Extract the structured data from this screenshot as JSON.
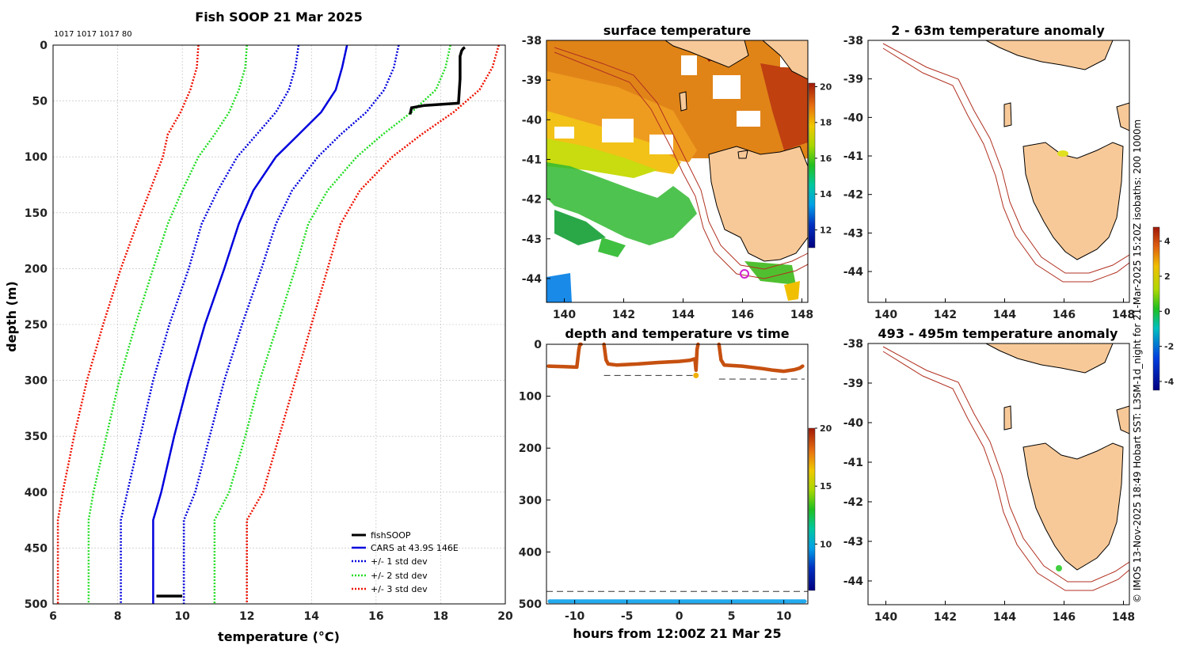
{
  "colors": {
    "land": "#f8c998",
    "cars": "#0000dd",
    "std1": "#0000dd",
    "std2": "#22dd22",
    "std3": "#ee1100",
    "fish": "#000000",
    "isobath": "#b03020",
    "track": "#c65010",
    "bottom": "#22aaee"
  },
  "chart_data": [
    {
      "type": "line",
      "name": "profile",
      "title": "Fish SOOP 21 Mar 2025",
      "subtitle": "1017 1017 1017 80",
      "xlabel": "temperature (°C)",
      "ylabel": "depth (m)",
      "xlim": [
        6,
        20
      ],
      "ylim": [
        500,
        0
      ],
      "xticks": [
        6,
        8,
        10,
        12,
        14,
        16,
        18,
        20
      ],
      "yticks": [
        0,
        50,
        100,
        150,
        200,
        250,
        300,
        350,
        400,
        450,
        500
      ],
      "legend": [
        "fishSOOP",
        "CARS at 43.9S 146E",
        "+/- 1 std dev",
        "+/- 2 std dev",
        "+/- 3 std dev"
      ],
      "depth": [
        0,
        20,
        40,
        60,
        80,
        100,
        130,
        160,
        200,
        250,
        300,
        350,
        400,
        425,
        450,
        500
      ],
      "series": [
        {
          "name": "CARS",
          "values": [
            15.1,
            14.95,
            14.75,
            14.3,
            13.6,
            12.9,
            12.2,
            11.75,
            11.3,
            10.7,
            10.2,
            9.75,
            9.35,
            9.1,
            9.1,
            9.1
          ]
        },
        {
          "name": "+1 std",
          "values": [
            16.7,
            16.55,
            16.25,
            15.7,
            14.9,
            14.2,
            13.4,
            12.9,
            12.45,
            11.85,
            11.3,
            10.85,
            10.4,
            10.05,
            10.05,
            10.05
          ]
        },
        {
          "name": "-1 std",
          "values": [
            13.6,
            13.5,
            13.3,
            12.9,
            12.3,
            11.7,
            11.1,
            10.6,
            10.2,
            9.6,
            9.1,
            8.7,
            8.3,
            8.1,
            8.1,
            8.1
          ]
        },
        {
          "name": "+2 std",
          "values": [
            18.3,
            18.15,
            17.85,
            17.1,
            16.2,
            15.4,
            14.5,
            13.9,
            13.5,
            12.95,
            12.4,
            11.95,
            11.45,
            11.0,
            11.0,
            11.0
          ]
        },
        {
          "name": "-2 std",
          "values": [
            12.0,
            11.95,
            11.75,
            11.45,
            11.0,
            10.5,
            10.0,
            9.55,
            9.1,
            8.55,
            8.05,
            7.65,
            7.25,
            7.1,
            7.1,
            7.1
          ]
        },
        {
          "name": "+3 std",
          "values": [
            19.8,
            19.6,
            19.2,
            18.4,
            17.4,
            16.5,
            15.5,
            14.9,
            14.5,
            14.0,
            13.5,
            13.0,
            12.5,
            12.0,
            12.0,
            12.0
          ]
        },
        {
          "name": "-3 std",
          "values": [
            10.5,
            10.45,
            10.25,
            9.95,
            9.55,
            9.4,
            9.0,
            8.6,
            8.1,
            7.55,
            7.05,
            6.65,
            6.3,
            6.15,
            6.15,
            6.15
          ]
        }
      ],
      "fish_segments": [
        {
          "t": [
            18.75,
            18.7,
            18.65,
            18.6,
            18.6,
            18.55,
            17.5,
            17.1,
            17.05
          ],
          "d": [
            2,
            3,
            5,
            10,
            30,
            52,
            54,
            56,
            62
          ]
        },
        {
          "t": [
            9.2,
            9.5,
            10.0
          ],
          "d": [
            493,
            493,
            493
          ]
        }
      ]
    },
    {
      "type": "heatmap",
      "name": "surface-map",
      "title": "surface temperature",
      "xlim": [
        139.4,
        148.2
      ],
      "ylim": [
        -44.6,
        -38
      ],
      "xticks": [
        140,
        142,
        144,
        146,
        148
      ],
      "yticks": [
        -38,
        -39,
        -40,
        -41,
        -42,
        -43,
        -44
      ],
      "colorbar_ticks": [
        12,
        14,
        16,
        18,
        20
      ],
      "colorbar_range": [
        11,
        20.2
      ]
    },
    {
      "type": "scatter",
      "name": "depth-time",
      "title": "depth and temperature vs time",
      "xlabel": "hours from 12:00Z 21 Mar 25",
      "xlim": [
        -12.7,
        12.3
      ],
      "ylim": [
        500,
        0
      ],
      "xticks": [
        -10,
        -5,
        0,
        5,
        10
      ],
      "yticks": [
        0,
        100,
        200,
        300,
        400,
        500
      ],
      "colorbar_ticks": [
        10,
        15,
        20
      ],
      "colorbar_range": [
        6,
        20
      ],
      "track": [
        {
          "h": [
            -12.5,
            -11,
            -9.8,
            -9.6,
            -9.5,
            -9.4
          ],
          "d": [
            42,
            43,
            44,
            10,
            0,
            0
          ]
        },
        {
          "h": [
            -7.2,
            -7.0,
            -6.8,
            -6,
            -4,
            -2,
            0,
            1,
            1.5,
            1.6,
            1.7,
            1.8
          ],
          "d": [
            0,
            30,
            38,
            40,
            38,
            35,
            33,
            31,
            28,
            50,
            10,
            0
          ]
        },
        {
          "h": [
            3.8,
            4.0,
            4.3,
            6,
            8,
            9,
            10,
            11,
            11.5,
            11.8
          ],
          "d": [
            0,
            30,
            40,
            42,
            47,
            50,
            52,
            49,
            46,
            42
          ]
        }
      ],
      "dashed": [
        {
          "h": [
            -7.2,
            1.6
          ],
          "d": 60
        },
        {
          "h": [
            3.8,
            12.0
          ],
          "d": 67
        },
        {
          "h": [
            -12.7,
            12.3
          ],
          "d": 476
        }
      ],
      "bottom_depth": 495
    },
    {
      "type": "heatmap",
      "name": "anomaly-shallow",
      "title": "2 - 63m temperature anomaly",
      "xlim": [
        139.4,
        148.2
      ],
      "ylim": [
        -44.8,
        -38
      ],
      "xticks": [
        140,
        142,
        144,
        146,
        148
      ],
      "yticks": [
        -38,
        -39,
        -40,
        -41,
        -42,
        -43,
        -44
      ]
    },
    {
      "type": "heatmap",
      "name": "anomaly-deep",
      "title": "493 - 495m temperature anomaly",
      "xlim": [
        139.4,
        148.2
      ],
      "ylim": [
        -44.6,
        -38
      ],
      "xticks": [
        140,
        142,
        144,
        146,
        148
      ],
      "yticks": [
        -38,
        -39,
        -40,
        -41,
        -42,
        -43,
        -44
      ]
    }
  ],
  "anomaly_colorbar": {
    "ticks": [
      4,
      2,
      0,
      -2,
      -4
    ],
    "range": [
      -4.5,
      4.8
    ]
  },
  "side_note": "© IMOS 13-Nov-2025 18:49 Hobart SST: L3SM-1d_night for 21-Mar-2025 15:20Z isobaths: 200  1000m"
}
